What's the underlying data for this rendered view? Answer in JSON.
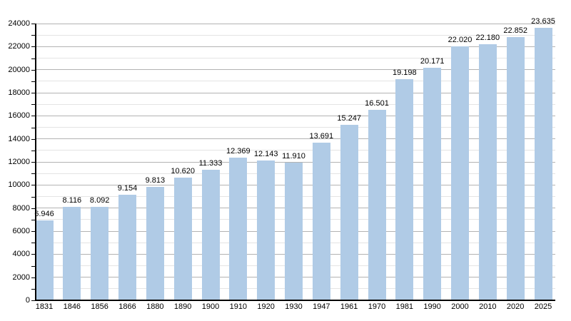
{
  "chart_data": {
    "type": "bar",
    "title": "",
    "xlabel": "",
    "ylabel": "",
    "categories": [
      "1831",
      "1846",
      "1856",
      "1866",
      "1880",
      "1890",
      "1900",
      "1910",
      "1920",
      "1930",
      "1947",
      "1961",
      "1970",
      "1981",
      "1990",
      "2000",
      "2010",
      "2020",
      "2025"
    ],
    "values": [
      6946,
      8116,
      8092,
      9154,
      9813,
      10620,
      11333,
      12369,
      12143,
      11910,
      13691,
      15247,
      16501,
      19198,
      20171,
      22020,
      22180,
      22852,
      23635
    ],
    "value_labels": [
      "6.946",
      "8.116",
      "8.092",
      "9.154",
      "9.813",
      "10.620",
      "11.333",
      "12.369",
      "12.143",
      "11.910",
      "13.691",
      "15.247",
      "16.501",
      "19.198",
      "20.171",
      "22.020",
      "22.180",
      "22.852",
      "23.635"
    ],
    "ylim": [
      0,
      24000
    ],
    "y_major_step": 2000,
    "y_minor_step": 1000,
    "y_major_tick_labels": [
      "0",
      "2000",
      "4000",
      "6000",
      "8000",
      "10000",
      "12000",
      "14000",
      "16000",
      "18000",
      "20000",
      "22000",
      "24000"
    ],
    "grid": true,
    "legend": null,
    "colors": {
      "bar_fill": "#b0cbe6",
      "major_grid": "#b3b3b3",
      "minor_grid": "#e4e4e4",
      "axis": "#000000",
      "text": "#000000"
    }
  }
}
